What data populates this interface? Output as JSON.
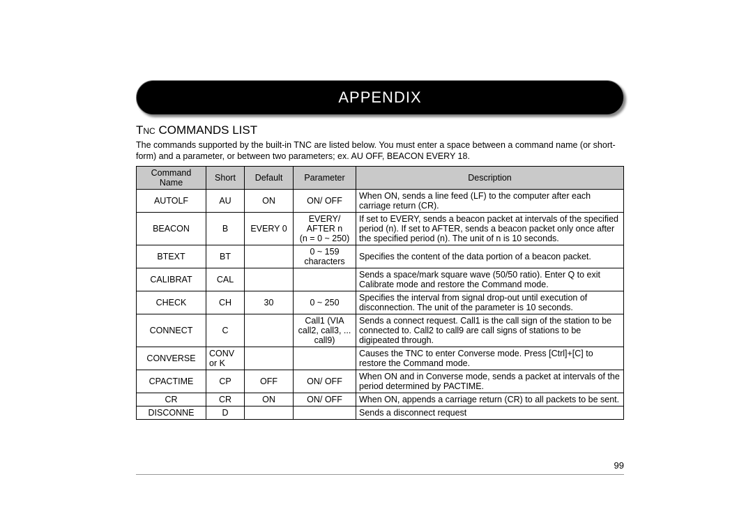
{
  "banner": {
    "title": "APPENDIX"
  },
  "section": {
    "title": "Tnc COMMANDS LIST",
    "intro": "The commands supported by the built-in TNC are listed below.  You must enter a space between a command name (or short-form) and a parameter, or between two parameters; ex. AU OFF, BEACON EVERY 18."
  },
  "table": {
    "headers": {
      "cmd": "Command Name",
      "short": "Short",
      "def": "Default",
      "param": "Parameter",
      "desc": "Description"
    },
    "rows": [
      {
        "cmd": "AUTOLF",
        "short": "AU",
        "def": "ON",
        "param": "ON/ OFF",
        "desc": "When ON, sends a line feed (LF) to the computer after each carriage return (CR)."
      },
      {
        "cmd": "BEACON",
        "short": "B",
        "def": "EVERY 0",
        "param": "EVERY/\nAFTER n\n(n = 0 ~ 250)",
        "desc": "If set to EVERY, sends a beacon packet at intervals of the specified period (n).  If set to AFTER, sends a beacon packet only once after the specified period (n).  The unit of n is 10 seconds."
      },
      {
        "cmd": "BTEXT",
        "short": "BT",
        "def": "",
        "param": "0 ~ 159\ncharacters",
        "desc": "Specifies the content of the data portion of a beacon packet."
      },
      {
        "cmd": "CALIBRAT",
        "short": "CAL",
        "def": "",
        "param": "",
        "desc": "Sends a space/mark square wave (50/50 ratio).  Enter Q to exit Calibrate mode and restore the Command mode."
      },
      {
        "cmd": "CHECK",
        "short": "CH",
        "def": "30",
        "param": "0 ~ 250",
        "desc": "Specifies the interval from signal drop-out until execution of disconnection.  The unit of the parameter is 10 seconds."
      },
      {
        "cmd": "CONNECT",
        "short": "C",
        "def": "",
        "param": "Call1 (VIA\ncall2, call3, ...\ncall9)",
        "desc": "Sends a connect request.  Call1 is the call sign of the station to be connected to.  Call2 to call9 are call signs of stations to be digipeated through."
      },
      {
        "cmd": "CONVERSE",
        "short": "CONV\nor K",
        "def": "",
        "param": "",
        "desc": "Causes the TNC to enter Converse mode.  Press [Ctrl]+[C] to restore the Command mode."
      },
      {
        "cmd": "CPACTIME",
        "short": "CP",
        "def": "OFF",
        "param": "ON/ OFF",
        "desc": "When ON and in Converse mode, sends a packet at intervals of the period determined by PACTIME."
      },
      {
        "cmd": "CR",
        "short": "CR",
        "def": "ON",
        "param": "ON/ OFF",
        "desc": "When ON, appends a carriage return (CR) to all packets to be sent."
      },
      {
        "cmd": "DISCONNE",
        "short": "D",
        "def": "",
        "param": "",
        "desc": "Sends a disconnect request"
      }
    ]
  },
  "page_number": "99",
  "colors": {
    "banner_bg": "#000000",
    "banner_text": "#ffffff",
    "header_bg": "#c9c9c9",
    "border": "#000000",
    "rule": "#999999"
  }
}
